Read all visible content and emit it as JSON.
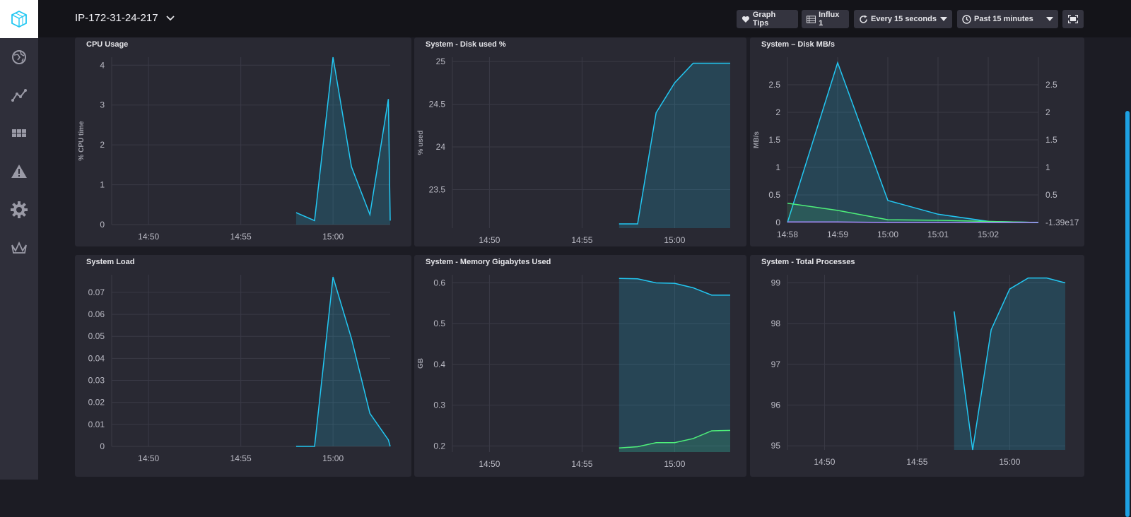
{
  "header": {
    "title": "IP-172-31-24-217",
    "buttons": {
      "graph_tips": "Graph Tips",
      "source": "Influx 1",
      "refresh": "Every 15 seconds",
      "range": "Past 15 minutes"
    }
  },
  "sidebar": {
    "items": [
      {
        "icon": "logo-icon"
      },
      {
        "icon": "host-icon"
      },
      {
        "icon": "graph-icon"
      },
      {
        "icon": "dashboard-icon"
      },
      {
        "icon": "alert-icon"
      },
      {
        "icon": "settings-icon"
      },
      {
        "icon": "crown-icon"
      }
    ]
  },
  "colors": {
    "accent": "#22c7f2",
    "fill": "#22c7f2",
    "green": "#4ef07a",
    "purple": "#a58bff"
  },
  "cells": [
    {
      "title": "CPU Usage"
    },
    {
      "title": "System - Disk used %"
    },
    {
      "title": "System – Disk MB/s"
    },
    {
      "title": "System Load"
    },
    {
      "title": "System - Memory Gigabytes Used"
    },
    {
      "title": "System - Total Processes"
    }
  ],
  "chart_data": [
    {
      "type": "area",
      "title": "CPU Usage",
      "ylabel": "% CPU time",
      "x_ticks": [
        "14:50",
        "14:55",
        "15:00"
      ],
      "y_ticks": [
        "0",
        "1",
        "2",
        "3",
        "4"
      ],
      "xlim": [
        -12,
        3.1
      ],
      "ylim": [
        0,
        4.2
      ],
      "series": [
        {
          "x": [
            -2,
            -1,
            0,
            1,
            2,
            3,
            3.1
          ],
          "y": [
            0.3,
            0.1,
            4.2,
            1.45,
            0.25,
            3.15,
            0.1
          ]
        }
      ]
    },
    {
      "type": "area",
      "title": "System - Disk used %",
      "ylabel": "% used",
      "x_ticks": [
        "14:50",
        "14:55",
        "15:00"
      ],
      "y_ticks": [
        "23.5",
        "24",
        "24.5",
        "25"
      ],
      "xlim": [
        -12,
        3
      ],
      "ylim": [
        23.05,
        25.05
      ],
      "series": [
        {
          "x": [
            -3,
            -2,
            -1,
            0,
            1,
            2,
            3
          ],
          "y": [
            23.1,
            23.1,
            24.4,
            24.75,
            24.98,
            24.98,
            24.98
          ]
        }
      ]
    },
    {
      "type": "area",
      "title": "System – Disk MB/s",
      "ylabel": "MB/s",
      "x_ticks": [
        "14:58",
        "14:59",
        "15:00",
        "15:01",
        "15:02"
      ],
      "y_ticks": [
        "0",
        "0.5",
        "1",
        "1.5",
        "2",
        "2.5"
      ],
      "y2_ticks": [
        "-1.39e17",
        "0.5",
        "1",
        "1.5",
        "2",
        "2.5"
      ],
      "xlim": [
        0,
        5
      ],
      "ylim": [
        0,
        3
      ],
      "series": [
        {
          "x": [
            0,
            1,
            2,
            3,
            4,
            5
          ],
          "y": [
            0,
            2.9,
            0.4,
            0.15,
            0.02,
            0
          ]
        },
        {
          "x": [
            0,
            1,
            2,
            3,
            4,
            5
          ],
          "y": [
            0.35,
            0.22,
            0.05,
            0.04,
            0.02,
            0
          ]
        },
        {
          "x": [
            0,
            1,
            2,
            3,
            4,
            5
          ],
          "y": [
            0.01,
            0.01,
            0.0,
            0.0,
            0.0,
            0
          ]
        }
      ]
    },
    {
      "type": "area",
      "title": "System Load",
      "ylabel": "",
      "x_ticks": [
        "14:50",
        "14:55",
        "15:00"
      ],
      "y_ticks": [
        "0",
        "0.01",
        "0.02",
        "0.03",
        "0.04",
        "0.05",
        "0.06",
        "0.07"
      ],
      "xlim": [
        -12,
        3.1
      ],
      "ylim": [
        0,
        0.078
      ],
      "series": [
        {
          "x": [
            -2,
            -1,
            0,
            1,
            2,
            3,
            3.1
          ],
          "y": [
            0,
            0,
            0.077,
            0.049,
            0.015,
            0.003,
            0
          ]
        }
      ]
    },
    {
      "type": "area",
      "title": "System - Memory Gigabytes Used",
      "ylabel": "GB",
      "x_ticks": [
        "14:50",
        "14:55",
        "15:00"
      ],
      "y_ticks": [
        "0.2",
        "0.3",
        "0.4",
        "0.5",
        "0.6"
      ],
      "xlim": [
        -12,
        3
      ],
      "ylim": [
        0.185,
        0.62
      ],
      "series": [
        {
          "x": [
            -3,
            -2,
            -1,
            0,
            1,
            2,
            3
          ],
          "y": [
            0.611,
            0.61,
            0.6,
            0.599,
            0.588,
            0.57,
            0.57
          ]
        },
        {
          "x": [
            -3,
            -2,
            -1,
            0,
            1,
            2,
            3
          ],
          "y": [
            0.195,
            0.198,
            0.208,
            0.208,
            0.218,
            0.237,
            0.238
          ]
        }
      ]
    },
    {
      "type": "area",
      "title": "System - Total Processes",
      "ylabel": "",
      "x_ticks": [
        "14:50",
        "14:55",
        "15:00"
      ],
      "y_ticks": [
        "95",
        "96",
        "97",
        "98",
        "99"
      ],
      "xlim": [
        -12,
        3
      ],
      "ylim": [
        94.9,
        99.2
      ],
      "series": [
        {
          "x": [
            -3,
            -2,
            -1,
            0,
            1,
            2,
            3
          ],
          "y": [
            98.3,
            94.9,
            97.85,
            98.85,
            99.12,
            99.12,
            99.0
          ]
        }
      ]
    }
  ]
}
